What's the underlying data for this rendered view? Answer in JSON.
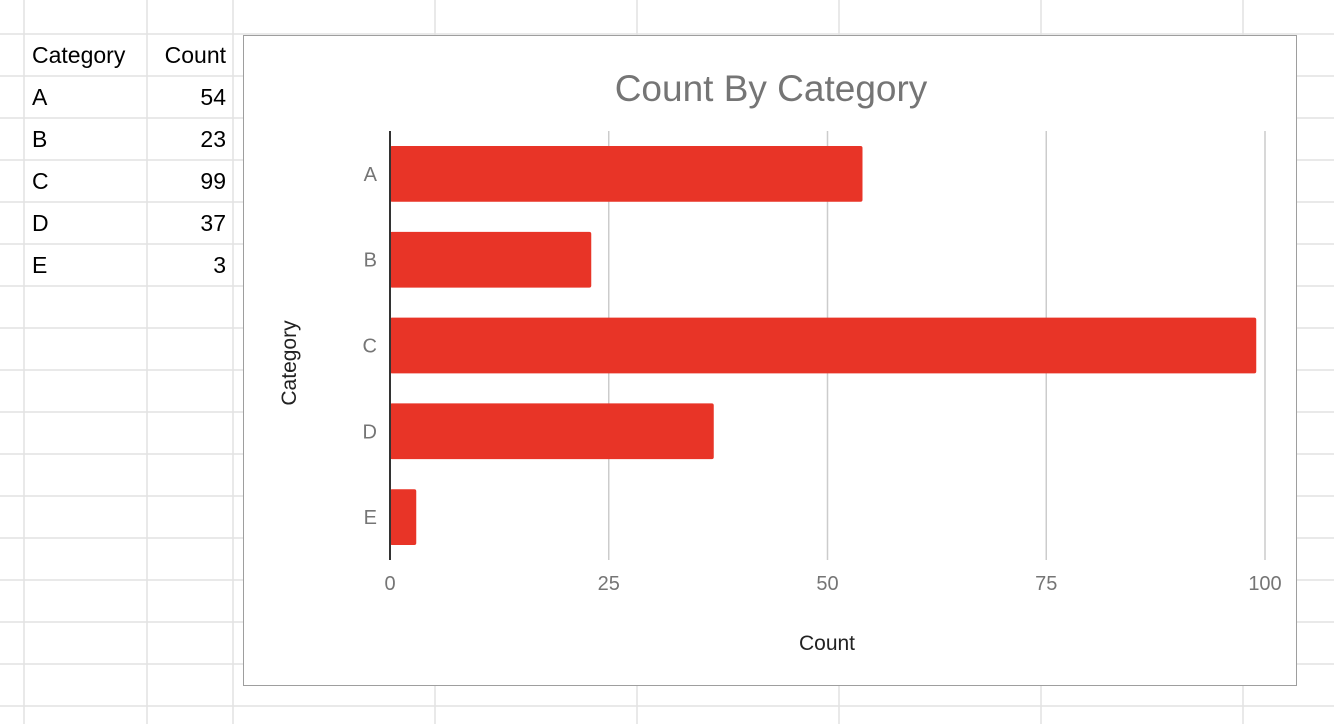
{
  "sheet": {
    "header": {
      "category": "Category",
      "count": "Count"
    },
    "rows": [
      {
        "category": "A",
        "count": "54"
      },
      {
        "category": "B",
        "count": "23"
      },
      {
        "category": "C",
        "count": "99"
      },
      {
        "category": "D",
        "count": "37"
      },
      {
        "category": "E",
        "count": "3"
      }
    ]
  },
  "colors": {
    "bar": "#e83427",
    "grid": "#cccccc",
    "axis": "#333333",
    "title": "#757575"
  },
  "chart_data": {
    "type": "bar",
    "orientation": "horizontal",
    "title": "Count By Category",
    "xlabel": "Count",
    "ylabel": "Category",
    "categories": [
      "A",
      "B",
      "C",
      "D",
      "E"
    ],
    "values": [
      54,
      23,
      99,
      37,
      3
    ],
    "xlim": [
      0,
      100
    ],
    "xticks": [
      "0",
      "25",
      "50",
      "75",
      "100"
    ],
    "grid": true,
    "legend": "none"
  }
}
